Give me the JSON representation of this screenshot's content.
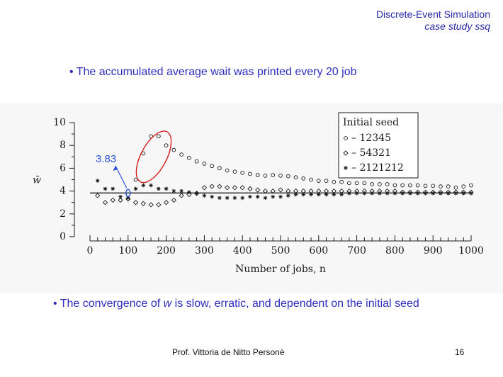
{
  "header": {
    "title": "Discrete-Event Simulation",
    "subtitle": "case study ssq"
  },
  "bullets": {
    "top": "• The accumulated average wait was printed every 20 job",
    "bottom_pre": "• The convergence of ",
    "bottom_w": "w",
    "bottom_post": " is slow, erratic, and dependent on the initial seed"
  },
  "annotation": {
    "value": "3.83"
  },
  "footer": {
    "author": "Prof. Vittoria de Nitto Personè",
    "page": "16"
  },
  "chart_data": {
    "type": "scatter",
    "title": "",
    "xlabel": "Number of jobs, n",
    "ylabel": "w̄",
    "xlim": [
      0,
      1000
    ],
    "ylim": [
      0,
      10
    ],
    "xticks": [
      0,
      100,
      200,
      300,
      400,
      500,
      600,
      700,
      800,
      900,
      1000
    ],
    "yticks": [
      0,
      2,
      4,
      6,
      8,
      10
    ],
    "grid": false,
    "legend_title": "Initial seed",
    "legend_position": "top-right",
    "reference_line": 3.83,
    "series": [
      {
        "name": "12345",
        "marker": "circle",
        "x": [
          120,
          140,
          160,
          180,
          200,
          220,
          240,
          260,
          280,
          300,
          320,
          340,
          360,
          380,
          400,
          420,
          440,
          460,
          480,
          500,
          520,
          540,
          560,
          580,
          600,
          620,
          640,
          660,
          680,
          700,
          720,
          740,
          760,
          780,
          800,
          820,
          840,
          860,
          880,
          900,
          920,
          940,
          960,
          980,
          1000
        ],
        "y": [
          5.0,
          7.3,
          8.8,
          8.8,
          8.0,
          7.6,
          7.2,
          6.9,
          6.6,
          6.4,
          6.2,
          6.0,
          5.8,
          5.7,
          5.6,
          5.5,
          5.4,
          5.35,
          5.4,
          5.35,
          5.3,
          5.2,
          5.1,
          5.0,
          4.9,
          4.9,
          4.8,
          4.8,
          4.7,
          4.7,
          4.7,
          4.6,
          4.6,
          4.6,
          4.5,
          4.5,
          4.5,
          4.5,
          4.45,
          4.45,
          4.4,
          4.4,
          4.3,
          4.4,
          4.5
        ]
      },
      {
        "name": "54321",
        "marker": "diamond",
        "x": [
          20,
          40,
          60,
          80,
          100,
          120,
          140,
          160,
          180,
          200,
          220,
          240,
          260,
          280,
          300,
          320,
          340,
          360,
          380,
          400,
          420,
          440,
          460,
          480,
          500,
          520,
          540,
          560,
          580,
          600,
          620,
          640,
          660,
          680,
          700,
          720,
          740,
          760,
          780,
          800,
          820,
          840,
          860,
          880,
          900,
          920,
          940,
          960,
          980,
          1000
        ],
        "y": [
          3.6,
          3.0,
          3.2,
          3.2,
          3.3,
          3.0,
          2.9,
          2.8,
          2.8,
          3.0,
          3.2,
          3.6,
          3.7,
          3.8,
          4.3,
          4.4,
          4.4,
          4.3,
          4.3,
          4.3,
          4.2,
          4.1,
          4.0,
          4.0,
          4.1,
          4.0,
          4.0,
          4.0,
          4.0,
          4.0,
          4.0,
          4.0,
          4.0,
          4.0,
          4.0,
          4.0,
          4.0,
          4.0,
          4.0,
          4.0,
          3.9,
          3.9,
          3.9,
          3.9,
          3.9,
          3.9,
          3.9,
          3.9,
          3.9,
          3.9
        ]
      },
      {
        "name": "2121212",
        "marker": "asterisk",
        "x": [
          20,
          40,
          60,
          80,
          100,
          120,
          140,
          160,
          180,
          200,
          220,
          240,
          260,
          280,
          300,
          320,
          340,
          360,
          380,
          400,
          420,
          440,
          460,
          480,
          500,
          520,
          540,
          560,
          580,
          600,
          620,
          640,
          660,
          680,
          700,
          720,
          740,
          760,
          780,
          800,
          820,
          840,
          860,
          880,
          900,
          920,
          940,
          960,
          980,
          1000
        ],
        "y": [
          4.9,
          4.2,
          4.2,
          3.5,
          3.4,
          4.2,
          4.5,
          4.5,
          4.2,
          4.2,
          4.0,
          4.0,
          3.9,
          3.8,
          3.6,
          3.5,
          3.4,
          3.4,
          3.4,
          3.4,
          3.5,
          3.5,
          3.4,
          3.5,
          3.5,
          3.6,
          3.7,
          3.7,
          3.7,
          3.7,
          3.7,
          3.7,
          3.7,
          3.8,
          3.8,
          3.8,
          3.8,
          3.8,
          3.8,
          3.8,
          3.8,
          3.8,
          3.8,
          3.8,
          3.8,
          3.8,
          3.8,
          3.8,
          3.8,
          3.8
        ]
      }
    ]
  }
}
